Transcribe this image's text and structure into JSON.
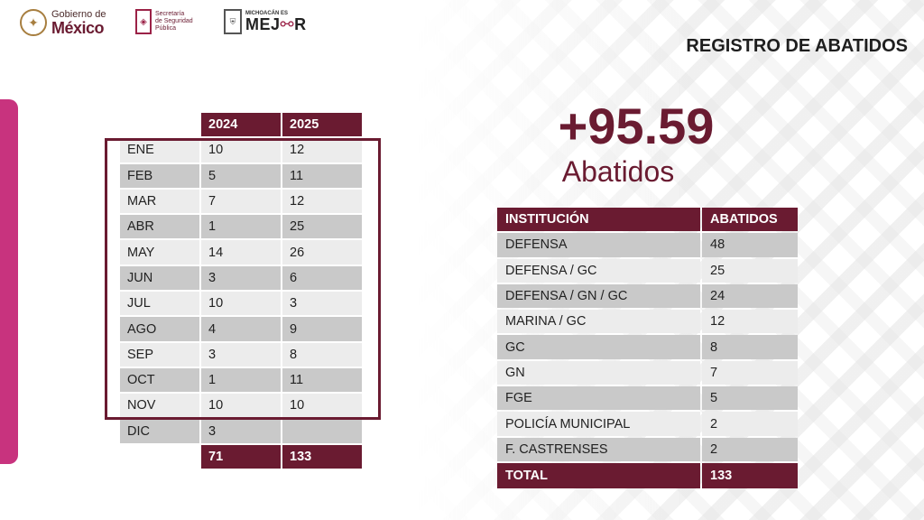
{
  "header": {
    "gob_line1": "Gobierno de",
    "gob_line2": "México",
    "ssp_line1": "Secretaría",
    "ssp_line2": "de Seguridad",
    "ssp_line3": "Pública",
    "mich_top": "MICHOACÁN ES",
    "mich_bottom_a": "MEJ",
    "mich_bottom_b": "R"
  },
  "page_title": "REGISTRO DE ABATIDOS",
  "highlight": {
    "number": "+95.59",
    "label": "Abatidos"
  },
  "monthly_table": {
    "headers": [
      "",
      "2024",
      "2025"
    ],
    "rows": [
      [
        "ENE",
        "10",
        "12"
      ],
      [
        "FEB",
        "5",
        "11"
      ],
      [
        "MAR",
        "7",
        "12"
      ],
      [
        "ABR",
        "1",
        "25"
      ],
      [
        "MAY",
        "14",
        "26"
      ],
      [
        "JUN",
        "3",
        "6"
      ],
      [
        "JUL",
        "10",
        "3"
      ],
      [
        "AGO",
        "4",
        "9"
      ],
      [
        "SEP",
        "3",
        "8"
      ],
      [
        "OCT",
        "1",
        "11"
      ],
      [
        "NOV",
        "10",
        "10"
      ],
      [
        "DIC",
        "3",
        ""
      ]
    ],
    "totals": [
      "",
      "71",
      "133"
    ]
  },
  "institution_table": {
    "headers": [
      "INSTITUCIÓN",
      "ABATIDOS"
    ],
    "rows": [
      [
        "DEFENSA",
        "48"
      ],
      [
        "DEFENSA / GC",
        "25"
      ],
      [
        "DEFENSA / GN / GC",
        "24"
      ],
      [
        "MARINA / GC",
        "12"
      ],
      [
        "GC",
        "8"
      ],
      [
        "GN",
        "7"
      ],
      [
        "FGE",
        "5"
      ],
      [
        "POLICÍA MUNICIPAL",
        "2"
      ],
      [
        "F. CASTRENSES",
        "2"
      ]
    ],
    "total": [
      "TOTAL",
      "133"
    ]
  },
  "colors": {
    "primary": "#6a1b31",
    "accent_bar": "#c8337e",
    "row_dark": "#c9c9c9",
    "row_light": "#ececec"
  }
}
